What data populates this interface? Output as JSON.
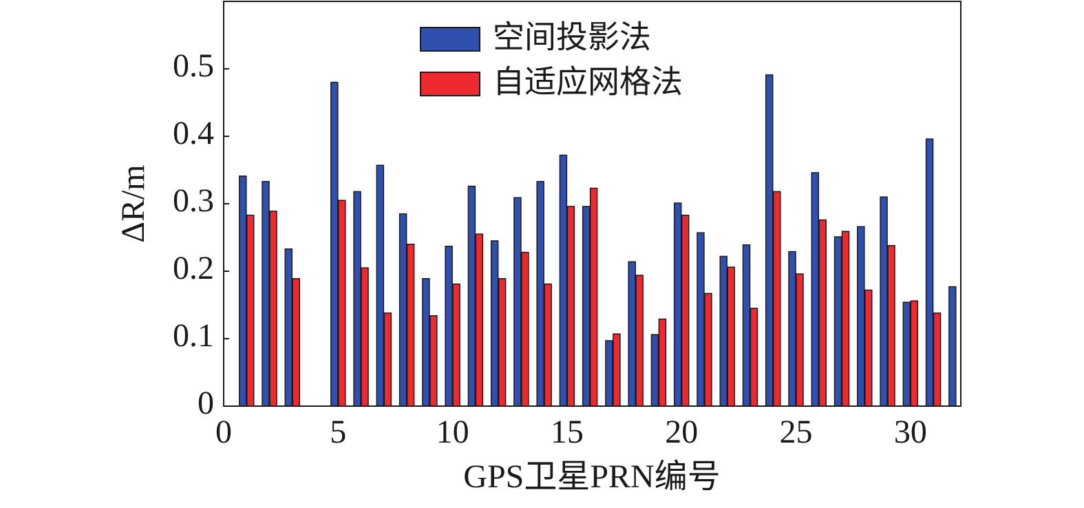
{
  "chart_data": {
    "type": "bar",
    "x_label": "GPS卫星PRN编号",
    "y_label": "ΔR/m",
    "x": [
      1,
      2,
      3,
      4,
      5,
      6,
      7,
      8,
      9,
      10,
      11,
      12,
      13,
      14,
      15,
      16,
      17,
      18,
      19,
      20,
      21,
      22,
      23,
      24,
      25,
      26,
      27,
      28,
      29,
      30,
      31,
      32
    ],
    "series": [
      {
        "name": "空间投影法",
        "color": "#3050b0",
        "values": [
          0.341,
          0.333,
          0.233,
          null,
          0.48,
          0.318,
          0.357,
          0.285,
          0.189,
          0.237,
          0.326,
          0.245,
          0.309,
          0.333,
          0.372,
          0.296,
          0.097,
          0.214,
          0.106,
          0.301,
          0.257,
          0.222,
          0.239,
          0.491,
          0.229,
          0.346,
          0.251,
          0.266,
          0.31,
          0.154,
          0.396,
          0.177
        ]
      },
      {
        "name": "自适应网格法",
        "color": "#ee2a30",
        "values": [
          0.283,
          0.289,
          0.189,
          null,
          0.305,
          0.205,
          0.138,
          0.24,
          0.134,
          0.181,
          0.255,
          0.189,
          0.228,
          0.181,
          0.296,
          0.323,
          0.107,
          0.194,
          0.129,
          0.283,
          0.167,
          0.206,
          0.145,
          0.318,
          0.196,
          0.276,
          0.259,
          0.172,
          0.238,
          0.156,
          0.138,
          null
        ]
      }
    ],
    "xlim": [
      0,
      32.2
    ],
    "xticks": [
      0,
      5,
      10,
      15,
      20,
      25,
      30
    ],
    "ylim": [
      0,
      0.6
    ],
    "yticks": [
      0,
      0.1,
      0.2,
      0.3,
      0.4,
      0.5
    ],
    "legend": "top"
  }
}
